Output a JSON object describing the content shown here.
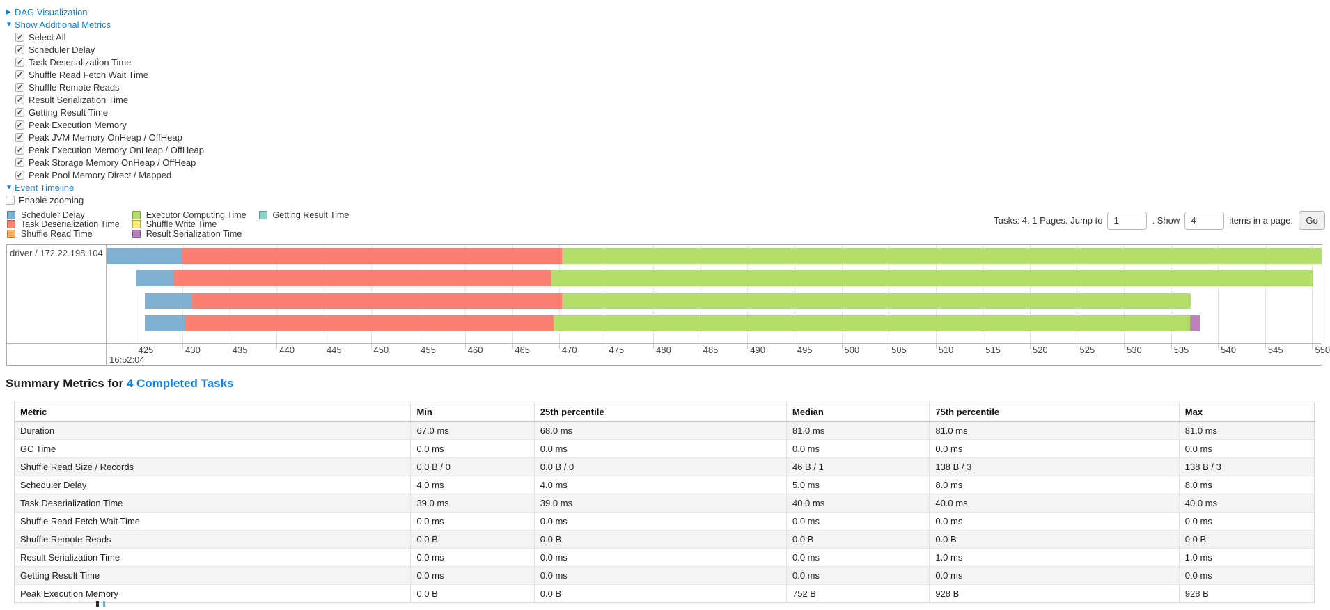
{
  "colors": {
    "link": "#0b80e4",
    "scheduler_delay": "#80B1D3",
    "task_deserialization": "#FB8072",
    "shuffle_read": "#FDB462",
    "executor_computing": "#B3DE69",
    "shuffle_write": "#FFED6F",
    "result_serialization": "#BC80BD",
    "getting_result": "#8DD3C7"
  },
  "toggles": {
    "dag": {
      "label": "DAG Visualization",
      "arrow": "right",
      "expanded": false
    },
    "additional_metrics": {
      "label": "Show Additional Metrics",
      "arrow": "down",
      "expanded": true
    },
    "event_timeline": {
      "label": "Event Timeline",
      "arrow": "down",
      "expanded": true
    }
  },
  "metric_checkboxes": [
    {
      "label": "Select All",
      "checked": true
    },
    {
      "label": "Scheduler Delay",
      "checked": true
    },
    {
      "label": "Task Deserialization Time",
      "checked": true
    },
    {
      "label": "Shuffle Read Fetch Wait Time",
      "checked": true
    },
    {
      "label": "Shuffle Remote Reads",
      "checked": true
    },
    {
      "label": "Result Serialization Time",
      "checked": true
    },
    {
      "label": "Getting Result Time",
      "checked": true
    },
    {
      "label": "Peak Execution Memory",
      "checked": true
    },
    {
      "label": "Peak JVM Memory OnHeap / OffHeap",
      "checked": true
    },
    {
      "label": "Peak Execution Memory OnHeap / OffHeap",
      "checked": true
    },
    {
      "label": "Peak Storage Memory OnHeap / OffHeap",
      "checked": true
    },
    {
      "label": "Peak Pool Memory Direct / Mapped",
      "checked": true
    }
  ],
  "enable_zooming": {
    "label": "Enable zooming",
    "checked": false
  },
  "legend_columns": [
    [
      {
        "label": "Scheduler Delay",
        "color_key": "scheduler_delay"
      },
      {
        "label": "Task Deserialization Time",
        "color_key": "task_deserialization"
      },
      {
        "label": "Shuffle Read Time",
        "color_key": "shuffle_read"
      }
    ],
    [
      {
        "label": "Executor Computing Time",
        "color_key": "executor_computing"
      },
      {
        "label": "Shuffle Write Time",
        "color_key": "shuffle_write"
      },
      {
        "label": "Result Serialization Time",
        "color_key": "result_serialization"
      }
    ],
    [
      {
        "label": "Getting Result Time",
        "color_key": "getting_result"
      }
    ]
  ],
  "pagination": {
    "tasks_text": "Tasks: 4. 1 Pages. Jump to",
    "jump_value": "1",
    "show_text": ". Show",
    "show_value": "4",
    "suffix_text": "items in a page.",
    "go_label": "Go"
  },
  "chart_data": {
    "type": "timeline",
    "group_label": "driver / 172.22.198.104",
    "axis": {
      "min": 422.0,
      "max": 551.0,
      "tick_start": 425,
      "tick_end": 550,
      "tick_step": 5,
      "major_label": "16:52:04"
    },
    "tasks": [
      {
        "segments": [
          {
            "type": "scheduler_delay",
            "start": 422.0,
            "end": 429.9
          },
          {
            "type": "task_deserialization",
            "start": 429.9,
            "end": 470.3
          },
          {
            "type": "executor_computing",
            "start": 470.3,
            "end": 551.0
          }
        ]
      },
      {
        "segments": [
          {
            "type": "scheduler_delay",
            "start": 425.0,
            "end": 429.0
          },
          {
            "type": "task_deserialization",
            "start": 429.0,
            "end": 469.2
          },
          {
            "type": "executor_computing",
            "start": 469.2,
            "end": 550.1
          }
        ]
      },
      {
        "segments": [
          {
            "type": "scheduler_delay",
            "start": 426.0,
            "end": 431.0
          },
          {
            "type": "task_deserialization",
            "start": 431.0,
            "end": 470.3
          },
          {
            "type": "executor_computing",
            "start": 470.3,
            "end": 537.1
          }
        ]
      },
      {
        "segments": [
          {
            "type": "scheduler_delay",
            "start": 426.0,
            "end": 430.2
          },
          {
            "type": "task_deserialization",
            "start": 430.2,
            "end": 469.4
          },
          {
            "type": "executor_computing",
            "start": 469.4,
            "end": 537.0
          },
          {
            "type": "result_serialization",
            "start": 537.0,
            "end": 538.1
          }
        ]
      }
    ]
  },
  "summary": {
    "title_prefix": "Summary Metrics for ",
    "title_link": "4 Completed Tasks",
    "columns": [
      "Metric",
      "Min",
      "25th percentile",
      "Median",
      "75th percentile",
      "Max"
    ],
    "col_widths": [
      "30.5%",
      "9.5%",
      "19.4%",
      "11%",
      "19.2%",
      "10.4%"
    ],
    "rows": [
      [
        "Duration",
        "67.0 ms",
        "68.0 ms",
        "81.0 ms",
        "81.0 ms",
        "81.0 ms"
      ],
      [
        "GC Time",
        "0.0 ms",
        "0.0 ms",
        "0.0 ms",
        "0.0 ms",
        "0.0 ms"
      ],
      [
        "Shuffle Read Size / Records",
        "0.0 B / 0",
        "0.0 B / 0",
        "46 B / 1",
        "138 B / 3",
        "138 B / 3"
      ],
      [
        "Scheduler Delay",
        "4.0 ms",
        "4.0 ms",
        "5.0 ms",
        "8.0 ms",
        "8.0 ms"
      ],
      [
        "Task Deserialization Time",
        "39.0 ms",
        "39.0 ms",
        "40.0 ms",
        "40.0 ms",
        "40.0 ms"
      ],
      [
        "Shuffle Read Fetch Wait Time",
        "0.0 ms",
        "0.0 ms",
        "0.0 ms",
        "0.0 ms",
        "0.0 ms"
      ],
      [
        "Shuffle Remote Reads",
        "0.0 B",
        "0.0 B",
        "0.0 B",
        "0.0 B",
        "0.0 B"
      ],
      [
        "Result Serialization Time",
        "0.0 ms",
        "0.0 ms",
        "0.0 ms",
        "1.0 ms",
        "1.0 ms"
      ],
      [
        "Getting Result Time",
        "0.0 ms",
        "0.0 ms",
        "0.0 ms",
        "0.0 ms",
        "0.0 ms"
      ],
      [
        "Peak Execution Memory",
        "0.0 B",
        "0.0 B",
        "752 B",
        "928 B",
        "928 B"
      ]
    ]
  }
}
